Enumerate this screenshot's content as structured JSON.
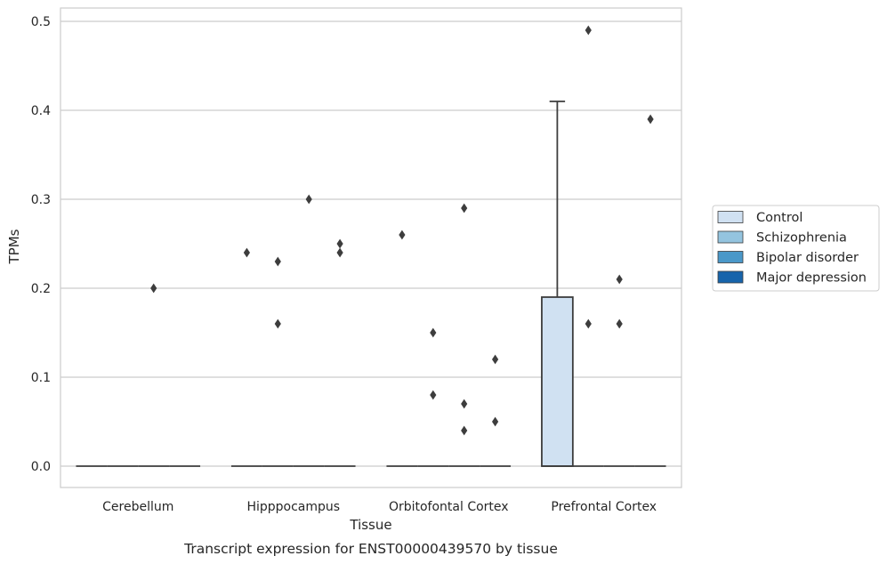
{
  "chart_data": {
    "type": "box",
    "caption": "Transcript expression for ENST00000439570 by tissue",
    "xlabel": "Tissue",
    "ylabel": "TPMs",
    "ylim": [
      -0.024,
      0.515
    ],
    "yticks": [
      0.0,
      0.1,
      0.2,
      0.3,
      0.4,
      0.5
    ],
    "ytick_labels": [
      "0.0",
      "0.1",
      "0.2",
      "0.3",
      "0.4",
      "0.5"
    ],
    "categories": [
      "Cerebellum",
      "Hipppocampus",
      "Orbitofontal Cortex",
      "Prefrontal Cortex"
    ],
    "grid": true,
    "legend_position": "right",
    "series": [
      {
        "name": "Control",
        "color": "#d0e1f2",
        "boxes": [
          {
            "category": "Cerebellum",
            "q1": 0.0,
            "median": 0.0,
            "q3": 0.0,
            "whisker_low": 0.0,
            "whisker_high": 0.0,
            "outliers": []
          },
          {
            "category": "Hipppocampus",
            "q1": 0.0,
            "median": 0.0,
            "q3": 0.0,
            "whisker_low": 0.0,
            "whisker_high": 0.0,
            "outliers": [
              0.24
            ]
          },
          {
            "category": "Orbitofontal Cortex",
            "q1": 0.0,
            "median": 0.0,
            "q3": 0.0,
            "whisker_low": 0.0,
            "whisker_high": 0.0,
            "outliers": [
              0.26
            ]
          },
          {
            "category": "Prefrontal Cortex",
            "q1": 0.0,
            "median": 0.0,
            "q3": 0.19,
            "whisker_low": 0.0,
            "whisker_high": 0.41,
            "outliers": []
          }
        ]
      },
      {
        "name": "Schizophrenia",
        "color": "#94c4df",
        "boxes": [
          {
            "category": "Cerebellum",
            "q1": 0.0,
            "median": 0.0,
            "q3": 0.0,
            "whisker_low": 0.0,
            "whisker_high": 0.0,
            "outliers": []
          },
          {
            "category": "Hipppocampus",
            "q1": 0.0,
            "median": 0.0,
            "q3": 0.0,
            "whisker_low": 0.0,
            "whisker_high": 0.0,
            "outliers": [
              0.23,
              0.16
            ]
          },
          {
            "category": "Orbitofontal Cortex",
            "q1": 0.0,
            "median": 0.0,
            "q3": 0.0,
            "whisker_low": 0.0,
            "whisker_high": 0.0,
            "outliers": [
              0.15,
              0.08
            ]
          },
          {
            "category": "Prefrontal Cortex",
            "q1": 0.0,
            "median": 0.0,
            "q3": 0.0,
            "whisker_low": 0.0,
            "whisker_high": 0.0,
            "outliers": [
              0.49,
              0.16
            ]
          }
        ]
      },
      {
        "name": "Bipolar disorder",
        "color": "#4a98c9",
        "boxes": [
          {
            "category": "Cerebellum",
            "q1": 0.0,
            "median": 0.0,
            "q3": 0.0,
            "whisker_low": 0.0,
            "whisker_high": 0.0,
            "outliers": [
              0.2
            ]
          },
          {
            "category": "Hipppocampus",
            "q1": 0.0,
            "median": 0.0,
            "q3": 0.0,
            "whisker_low": 0.0,
            "whisker_high": 0.0,
            "outliers": [
              0.3
            ]
          },
          {
            "category": "Orbitofontal Cortex",
            "q1": 0.0,
            "median": 0.0,
            "q3": 0.0,
            "whisker_low": 0.0,
            "whisker_high": 0.0,
            "outliers": [
              0.29,
              0.07,
              0.04
            ]
          },
          {
            "category": "Prefrontal Cortex",
            "q1": 0.0,
            "median": 0.0,
            "q3": 0.0,
            "whisker_low": 0.0,
            "whisker_high": 0.0,
            "outliers": [
              0.21,
              0.16
            ]
          }
        ]
      },
      {
        "name": "Major depression",
        "color": "#1764ab",
        "boxes": [
          {
            "category": "Cerebellum",
            "q1": 0.0,
            "median": 0.0,
            "q3": 0.0,
            "whisker_low": 0.0,
            "whisker_high": 0.0,
            "outliers": []
          },
          {
            "category": "Hipppocampus",
            "q1": 0.0,
            "median": 0.0,
            "q3": 0.0,
            "whisker_low": 0.0,
            "whisker_high": 0.0,
            "outliers": [
              0.25,
              0.24
            ]
          },
          {
            "category": "Orbitofontal Cortex",
            "q1": 0.0,
            "median": 0.0,
            "q3": 0.0,
            "whisker_low": 0.0,
            "whisker_high": 0.0,
            "outliers": [
              0.12,
              0.05
            ]
          },
          {
            "category": "Prefrontal Cortex",
            "q1": 0.0,
            "median": 0.0,
            "q3": 0.0,
            "whisker_low": 0.0,
            "whisker_high": 0.0,
            "outliers": [
              0.39
            ]
          }
        ]
      }
    ],
    "colors": {
      "grid": "#cccccc",
      "frame": "#cccccc",
      "box_edge": "#3d3d3d",
      "outlier": "#3d3d3d"
    }
  }
}
